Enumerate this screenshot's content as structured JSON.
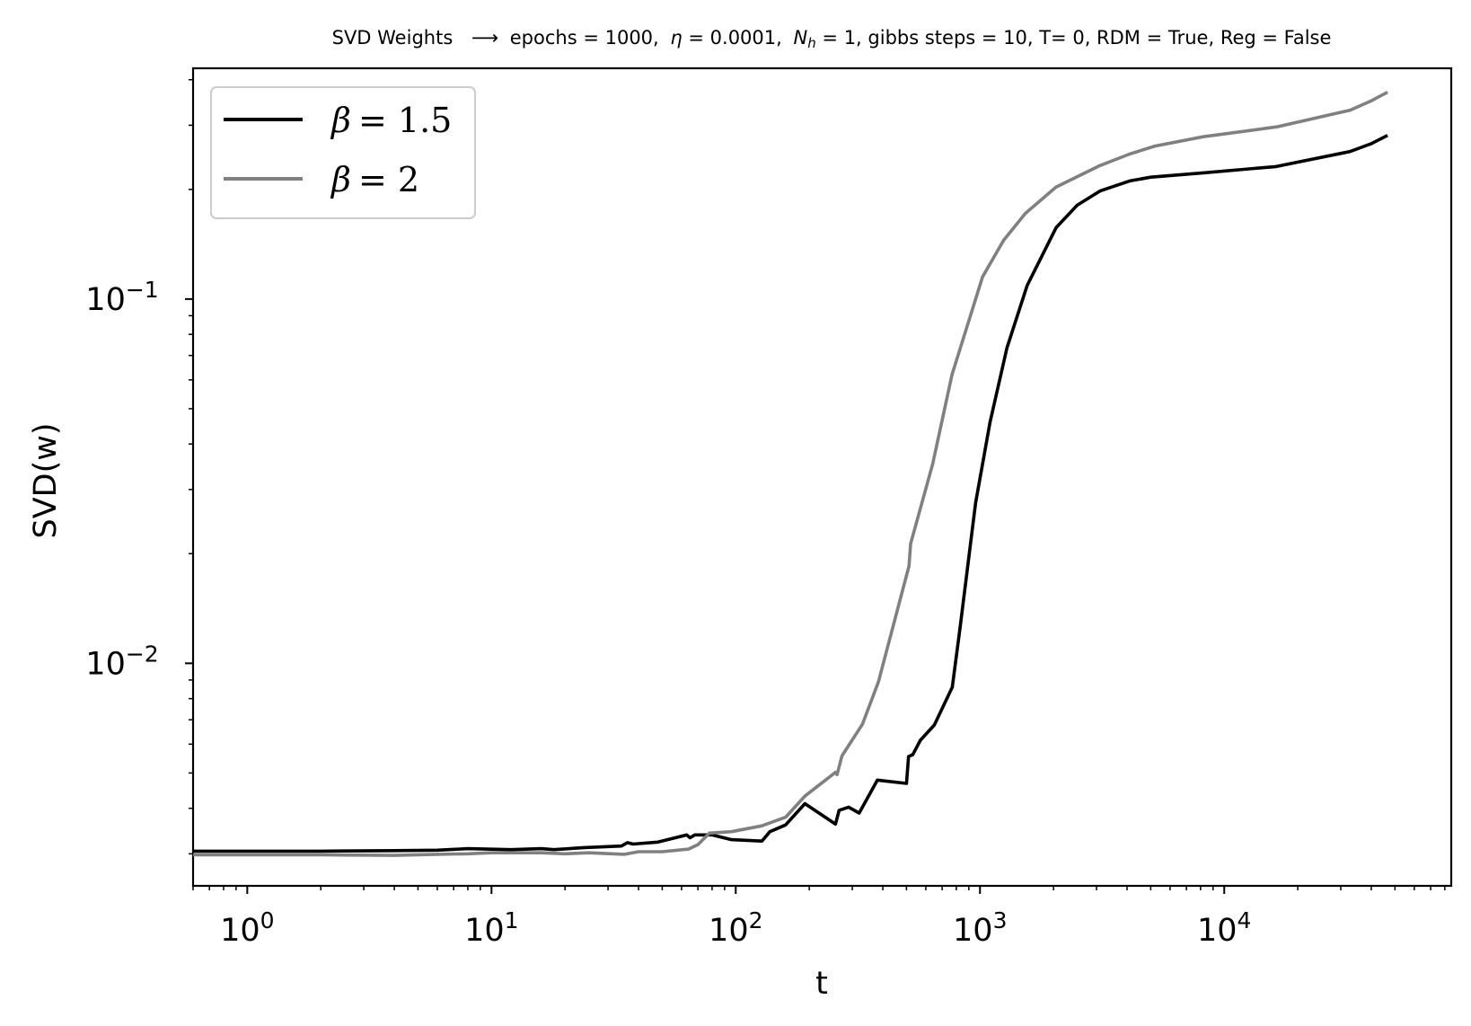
{
  "chart_data": {
    "type": "line",
    "title_parts": {
      "main": "SVD Weights",
      "arrow": "⟶",
      "epochs": "epochs = 1000,",
      "eta_symbol": "η",
      "eta_value": " = 0.0001,",
      "nh_symbol": "N",
      "nh_subscript": "h",
      "nh_value": " = 1, gibbs steps = 10, T= 0, RDM = True, Reg = False"
    },
    "xlabel": "t",
    "ylabel": "SVD(w)",
    "xscale": "log",
    "yscale": "log",
    "xlim": [
      0.6,
      85000
    ],
    "ylim": [
      0.00245,
      0.43
    ],
    "grid": false,
    "legend_position": "upper left",
    "x_ticks": [
      {
        "base": "10",
        "exp": "0",
        "value": 1
      },
      {
        "base": "10",
        "exp": "1",
        "value": 10
      },
      {
        "base": "10",
        "exp": "2",
        "value": 100
      },
      {
        "base": "10",
        "exp": "3",
        "value": 1000
      },
      {
        "base": "10",
        "exp": "4",
        "value": 10000
      }
    ],
    "y_ticks": [
      {
        "base": "10",
        "exp": "−2",
        "value": 0.01
      },
      {
        "base": "10",
        "exp": "−1",
        "value": 0.1
      }
    ],
    "series": [
      {
        "name": "β = 1.5",
        "legend_symbol": "β",
        "legend_value": "= 1.5",
        "color": "#000000",
        "points": [
          [
            0.6,
            0.00305
          ],
          [
            1,
            0.00305
          ],
          [
            2,
            0.00305
          ],
          [
            4,
            0.00306
          ],
          [
            6,
            0.00307
          ],
          [
            8,
            0.0031
          ],
          [
            12,
            0.00308
          ],
          [
            16,
            0.0031
          ],
          [
            18,
            0.00308
          ],
          [
            24,
            0.00312
          ],
          [
            34,
            0.00315
          ],
          [
            36,
            0.00322
          ],
          [
            38,
            0.00319
          ],
          [
            48,
            0.00323
          ],
          [
            63,
            0.00338
          ],
          [
            65,
            0.00332
          ],
          [
            68,
            0.00338
          ],
          [
            80,
            0.00338
          ],
          [
            96,
            0.00328
          ],
          [
            128,
            0.00325
          ],
          [
            138,
            0.00345
          ],
          [
            160,
            0.0036
          ],
          [
            192,
            0.00412
          ],
          [
            256,
            0.00362
          ],
          [
            265,
            0.00395
          ],
          [
            290,
            0.00403
          ],
          [
            320,
            0.00388
          ],
          [
            380,
            0.00478
          ],
          [
            500,
            0.00468
          ],
          [
            510,
            0.00555
          ],
          [
            530,
            0.00561
          ],
          [
            570,
            0.00615
          ],
          [
            650,
            0.00677
          ],
          [
            770,
            0.0086
          ],
          [
            830,
            0.0126
          ],
          [
            960,
            0.0276
          ],
          [
            1100,
            0.046
          ],
          [
            1290,
            0.0735
          ],
          [
            1560,
            0.109
          ],
          [
            2050,
            0.157
          ],
          [
            2500,
            0.181
          ],
          [
            3100,
            0.198
          ],
          [
            4100,
            0.211
          ],
          [
            5000,
            0.216
          ],
          [
            8200,
            0.222
          ],
          [
            16300,
            0.231
          ],
          [
            32700,
            0.254
          ],
          [
            40000,
            0.267
          ],
          [
            46000,
            0.28
          ]
        ]
      },
      {
        "name": "β = 2",
        "legend_symbol": "β",
        "legend_value": "= 2",
        "color": "#808080",
        "points": [
          [
            0.6,
            0.00298
          ],
          [
            1,
            0.00298
          ],
          [
            2,
            0.00298
          ],
          [
            4,
            0.00297
          ],
          [
            6,
            0.00299
          ],
          [
            8,
            0.003
          ],
          [
            10,
            0.00302
          ],
          [
            16,
            0.00302
          ],
          [
            20,
            0.003
          ],
          [
            25,
            0.00302
          ],
          [
            35,
            0.00299
          ],
          [
            40,
            0.00304
          ],
          [
            50,
            0.00304
          ],
          [
            64,
            0.00309
          ],
          [
            70,
            0.00318
          ],
          [
            78,
            0.00342
          ],
          [
            96,
            0.00345
          ],
          [
            128,
            0.00358
          ],
          [
            160,
            0.00378
          ],
          [
            192,
            0.00432
          ],
          [
            256,
            0.00502
          ],
          [
            260,
            0.00495
          ],
          [
            272,
            0.00557
          ],
          [
            330,
            0.0068
          ],
          [
            384,
            0.0089
          ],
          [
            512,
            0.0185
          ],
          [
            520,
            0.0213
          ],
          [
            640,
            0.0352
          ],
          [
            768,
            0.062
          ],
          [
            1024,
            0.115
          ],
          [
            1250,
            0.145
          ],
          [
            1536,
            0.172
          ],
          [
            2048,
            0.203
          ],
          [
            3072,
            0.232
          ],
          [
            4096,
            0.25
          ],
          [
            5200,
            0.263
          ],
          [
            8200,
            0.279
          ],
          [
            16400,
            0.297
          ],
          [
            32800,
            0.33
          ],
          [
            40000,
            0.35
          ],
          [
            46000,
            0.368
          ]
        ]
      }
    ]
  }
}
